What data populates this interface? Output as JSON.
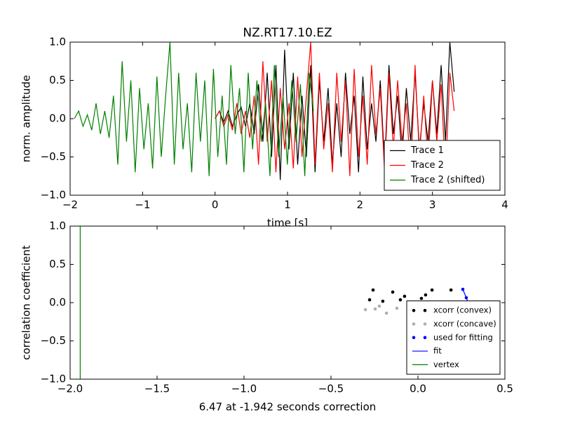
{
  "chart_data": [
    {
      "type": "line",
      "title": "NZ.RT17.10.EZ",
      "xlabel": "time [s]",
      "ylabel": "norm. amplitude",
      "xlim": [
        -2,
        4
      ],
      "ylim": [
        -1,
        1
      ],
      "xticks": [
        {
          "value": -2,
          "label": "−2"
        },
        {
          "value": -1,
          "label": "−1"
        },
        0,
        1,
        2,
        3,
        4
      ],
      "yticks": [
        {
          "value": -1,
          "label": "−1.0"
        },
        {
          "value": -0.5,
          "label": "−0.5"
        },
        {
          "value": 0,
          "label": "0.0"
        },
        {
          "value": 0.5,
          "label": "0.5"
        },
        {
          "value": 1,
          "label": "1.0"
        }
      ],
      "grid": false,
      "legend": "lower right",
      "series": [
        {
          "name": "Trace 1",
          "color": "#000000",
          "kind": "line",
          "x": [
            0,
            0.06,
            0.12,
            0.18,
            0.24,
            0.3,
            0.36,
            0.42,
            0.48,
            0.54,
            0.6,
            0.66,
            0.72,
            0.78,
            0.84,
            0.9,
            0.96,
            1.02,
            1.08,
            1.14,
            1.2,
            1.26,
            1.32,
            1.38,
            1.44,
            1.5,
            1.56,
            1.62,
            1.68,
            1.74,
            1.8,
            1.86,
            1.92,
            1.98,
            2.04,
            2.1,
            2.16,
            2.22,
            2.28,
            2.34,
            2.4,
            2.46,
            2.52,
            2.58,
            2.64,
            2.7,
            2.76,
            2.82,
            2.88,
            2.94,
            3.0,
            3.06,
            3.12,
            3.18,
            3.24,
            3.3
          ],
          "values": [
            0,
            0.1,
            -0.05,
            0.1,
            -0.1,
            0.05,
            0.15,
            -0.1,
            0.2,
            -0.2,
            0.45,
            -0.3,
            0.6,
            -0.5,
            0.7,
            -0.8,
            0.9,
            -0.4,
            0.6,
            -0.6,
            0.3,
            -0.5,
            0.7,
            -0.7,
            0.5,
            -0.3,
            0.4,
            -0.6,
            0.2,
            -0.5,
            0.6,
            -0.2,
            0.3,
            -0.7,
            0.55,
            -0.4,
            0.2,
            -0.3,
            0.5,
            -0.6,
            0.7,
            -0.2,
            0.3,
            -0.5,
            0.4,
            -0.3,
            0.6,
            -0.4,
            0.2,
            -0.3,
            0.5,
            -0.2,
            0.7,
            -0.3,
            1.0,
            0.35
          ]
        },
        {
          "name": "Trace 2",
          "color": "#ff0000",
          "kind": "line",
          "x": [
            0,
            0.06,
            0.12,
            0.18,
            0.24,
            0.3,
            0.36,
            0.42,
            0.48,
            0.54,
            0.6,
            0.66,
            0.72,
            0.78,
            0.84,
            0.9,
            0.96,
            1.02,
            1.08,
            1.14,
            1.2,
            1.26,
            1.32,
            1.38,
            1.44,
            1.5,
            1.56,
            1.62,
            1.68,
            1.74,
            1.8,
            1.86,
            1.92,
            1.98,
            2.04,
            2.1,
            2.16,
            2.22,
            2.28,
            2.34,
            2.4,
            2.46,
            2.52,
            2.58,
            2.64,
            2.7,
            2.76,
            2.82,
            2.88,
            2.94,
            3.0,
            3.06,
            3.12,
            3.18,
            3.24,
            3.3
          ],
          "values": [
            0,
            0.1,
            -0.1,
            0.05,
            -0.15,
            0.2,
            -0.2,
            0.1,
            -0.25,
            0.3,
            -0.6,
            0.75,
            -0.3,
            0.5,
            -0.7,
            0.4,
            -0.4,
            0.2,
            -0.65,
            0.55,
            -0.5,
            0.3,
            1.0,
            -0.6,
            0.6,
            -0.4,
            0.2,
            -0.7,
            0.6,
            -0.3,
            0.5,
            -0.75,
            0.65,
            -0.5,
            0.3,
            -0.6,
            0.7,
            -0.2,
            0.4,
            -0.7,
            0.6,
            -0.4,
            0.5,
            -0.3,
            0.2,
            -0.75,
            0.7,
            -0.5,
            0.3,
            -0.6,
            0.5,
            -0.3,
            0.45,
            -0.75,
            0.6,
            0.1
          ]
        },
        {
          "name": "Trace 2 (shifted)",
          "color": "#008000",
          "kind": "line",
          "x": [
            -1.942,
            -1.882,
            -1.822,
            -1.762,
            -1.702,
            -1.642,
            -1.582,
            -1.522,
            -1.462,
            -1.402,
            -1.342,
            -1.282,
            -1.222,
            -1.162,
            -1.102,
            -1.042,
            -0.982,
            -0.922,
            -0.862,
            -0.802,
            -0.742,
            -0.682,
            -0.622,
            -0.562,
            -0.502,
            -0.442,
            -0.382,
            -0.322,
            -0.262,
            -0.202,
            -0.142,
            -0.082,
            -0.022,
            0.038,
            0.098,
            0.158,
            0.218,
            0.278,
            0.338,
            0.398,
            0.458,
            0.518,
            0.578,
            0.638,
            0.698,
            0.758,
            0.818,
            0.878,
            0.938,
            0.998,
            1.058,
            1.118,
            1.178,
            1.238,
            1.298,
            1.358
          ],
          "values": [
            0,
            0.1,
            -0.1,
            0.05,
            -0.15,
            0.2,
            -0.2,
            0.1,
            -0.25,
            0.3,
            -0.6,
            0.75,
            -0.3,
            0.5,
            -0.7,
            0.4,
            -0.4,
            0.2,
            -0.65,
            0.55,
            -0.5,
            0.3,
            1.0,
            -0.6,
            0.6,
            -0.4,
            0.2,
            -0.7,
            0.6,
            -0.3,
            0.5,
            -0.75,
            0.65,
            -0.5,
            0.3,
            -0.6,
            0.7,
            -0.2,
            0.4,
            -0.7,
            0.6,
            -0.4,
            0.5,
            -0.3,
            0.2,
            -0.75,
            0.7,
            -0.5,
            0.3,
            -0.6,
            0.5,
            -0.3,
            0.45,
            -0.75,
            0.6,
            0.1
          ]
        }
      ]
    },
    {
      "type": "scatter",
      "xlabel": "6.47 at -1.942 seconds correction",
      "ylabel": "correlation coefficient",
      "xlim": [
        -2,
        0.5
      ],
      "ylim": [
        -1,
        1
      ],
      "xticks": [
        {
          "value": -2,
          "label": "−2.0"
        },
        {
          "value": -1.5,
          "label": "−1.5"
        },
        {
          "value": -1,
          "label": "−1.0"
        },
        {
          "value": -0.5,
          "label": "−0.5"
        },
        {
          "value": 0,
          "label": "0.0"
        },
        {
          "value": 0.5,
          "label": "0.5"
        }
      ],
      "yticks": [
        {
          "value": -1,
          "label": "−1.0"
        },
        {
          "value": -0.5,
          "label": "−0.5"
        },
        {
          "value": 0,
          "label": "0.0"
        },
        {
          "value": 0.5,
          "label": "0.5"
        },
        {
          "value": 1,
          "label": "1.0"
        }
      ],
      "grid": false,
      "legend": "lower right",
      "series": [
        {
          "name": "xcorr (convex)",
          "color": "#000000",
          "kind": "scatter",
          "x": [
            -0.278,
            -0.258,
            -0.202,
            -0.145,
            -0.101,
            -0.077,
            -0.028,
            0.02,
            0.044,
            0.081,
            0.109,
            0.19
          ],
          "values": [
            0.037,
            0.165,
            0.018,
            0.138,
            0.037,
            0.083,
            -0.009,
            0.055,
            0.101,
            0.165,
            -0.009,
            0.165
          ]
        },
        {
          "name": "xcorr (concave)",
          "color": "#b0b0b0",
          "kind": "scatter",
          "x": [
            -0.302,
            -0.246,
            -0.222,
            -0.181,
            -0.121,
            -0.048,
            0.008,
            0.065,
            0.121,
            0.165,
            0.222,
            0.242
          ],
          "values": [
            -0.092,
            -0.083,
            -0.046,
            -0.138,
            -0.073,
            -0.009,
            -0.11,
            -0.009,
            -0.092,
            -0.055,
            0.0,
            -0.092
          ]
        },
        {
          "name": "used for fitting",
          "color": "#0000ff",
          "kind": "scatter",
          "x": [
            0.258,
            0.278,
            0.298
          ],
          "values": [
            0.174,
            0.064,
            -0.055
          ]
        },
        {
          "name": "fit",
          "color": "#0000ff",
          "kind": "line",
          "x": [
            0.258,
            0.278,
            0.298
          ],
          "values": [
            0.174,
            0.064,
            -0.055
          ]
        },
        {
          "name": "vertex",
          "color": "#008000",
          "kind": "line",
          "x": [
            -1.942,
            -1.942
          ],
          "values": [
            -1,
            1
          ]
        }
      ]
    }
  ]
}
